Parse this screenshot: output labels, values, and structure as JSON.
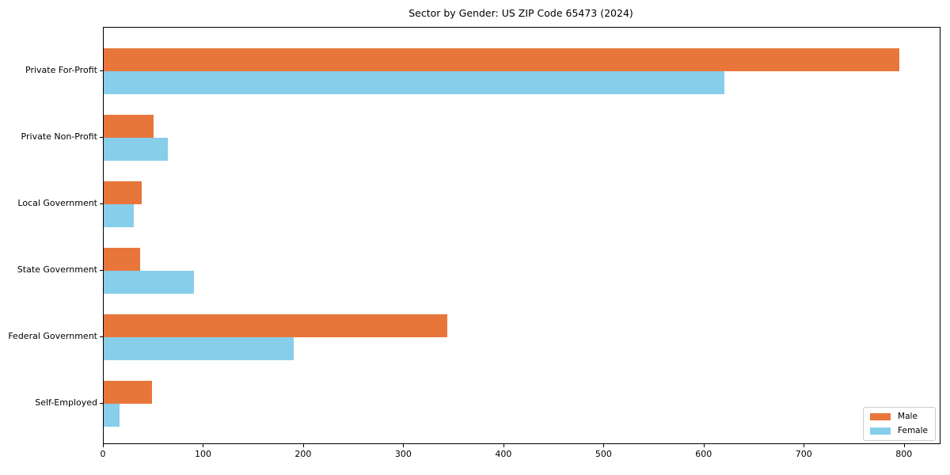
{
  "chart_data": {
    "type": "bar",
    "orientation": "horizontal",
    "title": "Sector by Gender: US ZIP Code 65473 (2024)",
    "categories": [
      "Private For-Profit",
      "Private Non-Profit",
      "Local Government",
      "State Government",
      "Federal Government",
      "Self-Employed"
    ],
    "series": [
      {
        "name": "Male",
        "color": "#e8763b",
        "values": [
          795,
          50,
          38,
          36,
          343,
          48
        ]
      },
      {
        "name": "Female",
        "color": "#87ceeb",
        "values": [
          620,
          64,
          30,
          90,
          190,
          16
        ]
      }
    ],
    "xlabel": "",
    "ylabel": "",
    "xlim": [
      0,
      835
    ],
    "xticks": [
      0,
      100,
      200,
      300,
      400,
      500,
      600,
      700,
      800
    ],
    "grid": false,
    "legend_position": "lower right",
    "axis_color": "#000000",
    "background_color": "#ffffff"
  }
}
